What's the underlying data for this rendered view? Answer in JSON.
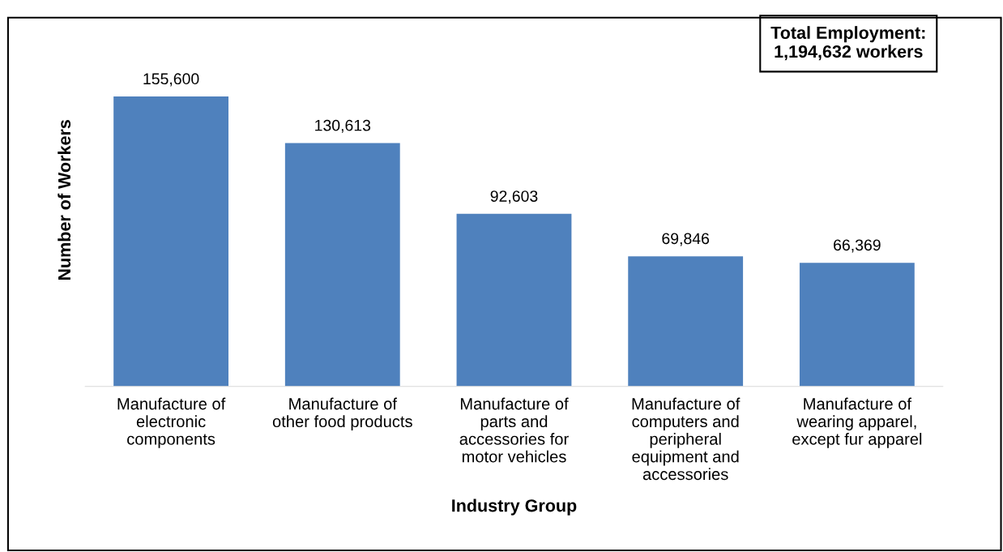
{
  "chart_data": {
    "type": "bar",
    "xlabel": "Industry Group",
    "ylabel": "Number of Workers",
    "categories": [
      "Manufacture of\nelectronic\ncomponents",
      "Manufacture of\nother food products",
      "Manufacture of\nparts and\naccessories for\nmotor vehicles",
      "Manufacture of\ncomputers and\nperipheral\nequipment and\naccessories",
      "Manufacture of\nwearing apparel,\nexcept fur apparel"
    ],
    "values": [
      155600,
      130613,
      92603,
      69846,
      66369
    ],
    "value_labels": [
      "155,600",
      "130,613",
      "92,603",
      "69,846",
      "66,369"
    ],
    "color": "#4f81bd",
    "ylim": [
      0,
      200000
    ],
    "tick_labels": "x",
    "grid": false,
    "legend": false,
    "annotations": [
      "Total Employment:\n1,194,632 workers"
    ]
  }
}
